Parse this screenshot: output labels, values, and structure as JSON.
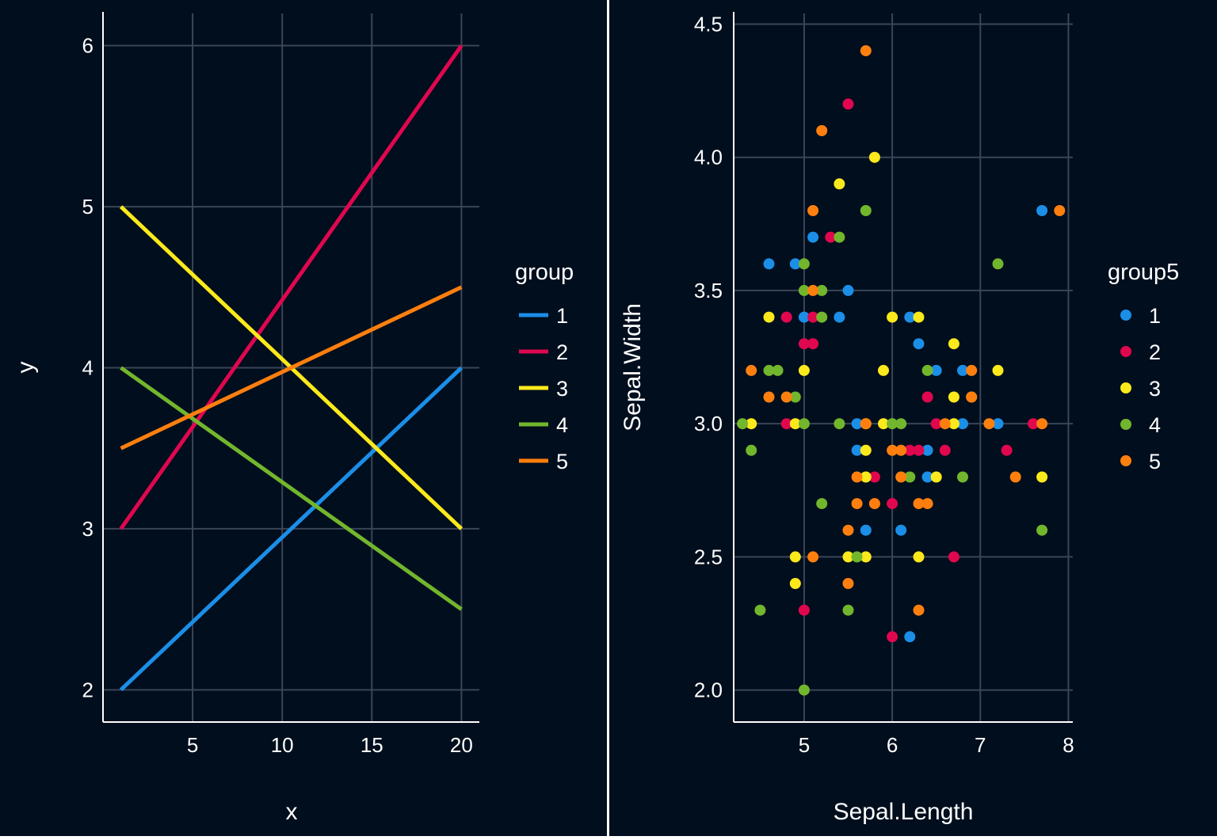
{
  "theme": {
    "panel_background": "#000e1d",
    "grid_color": "#3a4658",
    "axis_color": "#ffffff",
    "text_color": "#ffffff",
    "palette": [
      "#1b8ee8",
      "#e0074f",
      "#fbe91c",
      "#72b62d",
      "#ff7f0e"
    ]
  },
  "chart_data": [
    {
      "type": "line",
      "xlabel": "x",
      "ylabel": "y",
      "xlim": [
        0,
        21
      ],
      "ylim": [
        1.8,
        6.2
      ],
      "xticks": [
        5,
        10,
        15,
        20
      ],
      "yticks": [
        2,
        3,
        4,
        5,
        6
      ],
      "grid": true,
      "legend": {
        "title": "group",
        "position": "right"
      },
      "series": [
        {
          "name": "1",
          "color": "#1b8ee8",
          "x": [
            1,
            20
          ],
          "y": [
            2,
            4
          ]
        },
        {
          "name": "2",
          "color": "#e0074f",
          "x": [
            1,
            20
          ],
          "y": [
            3,
            6
          ]
        },
        {
          "name": "3",
          "color": "#fbe91c",
          "x": [
            1,
            20
          ],
          "y": [
            5,
            3
          ]
        },
        {
          "name": "4",
          "color": "#72b62d",
          "x": [
            1,
            20
          ],
          "y": [
            4,
            2.5
          ]
        },
        {
          "name": "5",
          "color": "#ff7f0e",
          "x": [
            1,
            20
          ],
          "y": [
            3.5,
            4.5
          ]
        }
      ]
    },
    {
      "type": "scatter",
      "xlabel": "Sepal.Length",
      "ylabel": "Sepal.Width",
      "xlim": [
        4.2,
        8.05
      ],
      "ylim": [
        1.88,
        4.54
      ],
      "xticks": [
        5,
        6,
        7,
        8
      ],
      "yticks": [
        "2.0",
        "2.5",
        "3.0",
        "3.5",
        "4.0",
        "4.5"
      ],
      "grid": true,
      "legend": {
        "title": "group5",
        "position": "right"
      },
      "series": [
        {
          "name": "1",
          "color": "#1b8ee8",
          "points": [
            [
              4.6,
              3.6
            ],
            [
              4.9,
              3.6
            ],
            [
              5.1,
              3.7
            ],
            [
              5.0,
              3.4
            ],
            [
              5.5,
              3.5
            ],
            [
              5.4,
              3.4
            ],
            [
              7.7,
              3.8
            ],
            [
              6.2,
              3.4
            ],
            [
              6.3,
              3.3
            ],
            [
              6.5,
              3.2
            ],
            [
              6.8,
              3.2
            ],
            [
              6.8,
              3.0
            ],
            [
              7.2,
              3.0
            ],
            [
              5.6,
              3.0
            ],
            [
              5.6,
              2.9
            ],
            [
              6.4,
              2.9
            ],
            [
              5.7,
              2.6
            ],
            [
              6.1,
              2.6
            ],
            [
              6.4,
              2.8
            ],
            [
              6.2,
              2.2
            ]
          ]
        },
        {
          "name": "2",
          "color": "#e0074f",
          "points": [
            [
              5.5,
              4.2
            ],
            [
              5.3,
              3.7
            ],
            [
              4.8,
              3.4
            ],
            [
              5.1,
              3.4
            ],
            [
              5.0,
              3.3
            ],
            [
              5.1,
              3.3
            ],
            [
              6.4,
              3.1
            ],
            [
              4.8,
              3.0
            ],
            [
              6.5,
              3.0
            ],
            [
              7.6,
              3.0
            ],
            [
              6.2,
              2.9
            ],
            [
              6.3,
              2.9
            ],
            [
              6.6,
              2.9
            ],
            [
              7.3,
              2.9
            ],
            [
              5.8,
              2.8
            ],
            [
              6.0,
              2.7
            ],
            [
              5.8,
              2.7
            ],
            [
              6.7,
              2.5
            ],
            [
              5.0,
              2.3
            ],
            [
              6.0,
              2.2
            ]
          ]
        },
        {
          "name": "3",
          "color": "#fbe91c",
          "points": [
            [
              5.8,
              4.0
            ],
            [
              5.4,
              3.9
            ],
            [
              4.6,
              3.4
            ],
            [
              6.0,
              3.4
            ],
            [
              6.3,
              3.4
            ],
            [
              6.7,
              3.3
            ],
            [
              5.0,
              3.2
            ],
            [
              5.9,
              3.2
            ],
            [
              7.2,
              3.2
            ],
            [
              6.7,
              3.1
            ],
            [
              4.4,
              3.0
            ],
            [
              4.9,
              3.0
            ],
            [
              5.7,
              3.0
            ],
            [
              5.9,
              3.0
            ],
            [
              6.7,
              3.0
            ],
            [
              5.7,
              2.9
            ],
            [
              5.7,
              2.8
            ],
            [
              6.5,
              2.8
            ],
            [
              7.7,
              2.8
            ],
            [
              4.9,
              2.5
            ],
            [
              5.5,
              2.5
            ],
            [
              5.7,
              2.5
            ],
            [
              6.3,
              2.5
            ],
            [
              4.9,
              2.4
            ]
          ]
        },
        {
          "name": "4",
          "color": "#72b62d",
          "points": [
            [
              5.7,
              3.8
            ],
            [
              5.4,
              3.7
            ],
            [
              5.0,
              3.6
            ],
            [
              7.2,
              3.6
            ],
            [
              5.0,
              3.5
            ],
            [
              5.2,
              3.5
            ],
            [
              5.2,
              3.4
            ],
            [
              4.7,
              3.2
            ],
            [
              4.6,
              3.2
            ],
            [
              6.4,
              3.2
            ],
            [
              6.9,
              3.1
            ],
            [
              4.9,
              3.1
            ],
            [
              4.3,
              3.0
            ],
            [
              5.0,
              3.0
            ],
            [
              5.4,
              3.0
            ],
            [
              6.0,
              3.0
            ],
            [
              6.1,
              3.0
            ],
            [
              4.4,
              2.9
            ],
            [
              6.2,
              2.8
            ],
            [
              6.8,
              2.8
            ],
            [
              5.2,
              2.7
            ],
            [
              7.7,
              2.6
            ],
            [
              5.6,
              2.5
            ],
            [
              4.5,
              2.3
            ],
            [
              5.5,
              2.3
            ],
            [
              5.0,
              2.0
            ]
          ]
        },
        {
          "name": "5",
          "color": "#ff7f0e",
          "points": [
            [
              5.7,
              4.4
            ],
            [
              5.2,
              4.1
            ],
            [
              5.1,
              3.8
            ],
            [
              7.9,
              3.8
            ],
            [
              5.1,
              3.5
            ],
            [
              4.4,
              3.2
            ],
            [
              6.9,
              3.2
            ],
            [
              4.6,
              3.1
            ],
            [
              4.8,
              3.1
            ],
            [
              6.9,
              3.1
            ],
            [
              5.7,
              3.0
            ],
            [
              6.6,
              3.0
            ],
            [
              7.1,
              3.0
            ],
            [
              7.7,
              3.0
            ],
            [
              6.0,
              2.9
            ],
            [
              6.1,
              2.9
            ],
            [
              5.6,
              2.8
            ],
            [
              6.1,
              2.8
            ],
            [
              7.4,
              2.8
            ],
            [
              5.6,
              2.7
            ],
            [
              5.8,
              2.7
            ],
            [
              6.3,
              2.7
            ],
            [
              6.4,
              2.7
            ],
            [
              5.5,
              2.6
            ],
            [
              5.1,
              2.5
            ],
            [
              5.5,
              2.4
            ],
            [
              6.3,
              2.3
            ]
          ]
        }
      ]
    }
  ]
}
